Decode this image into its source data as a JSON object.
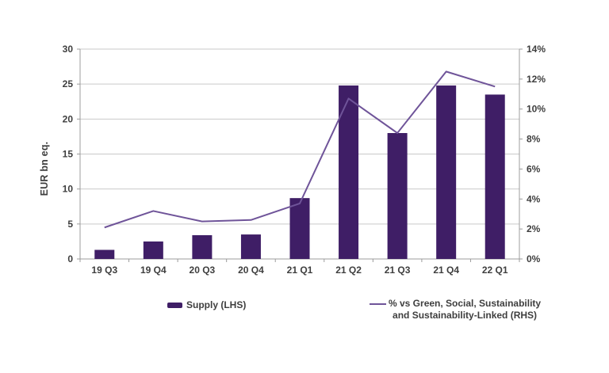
{
  "legend": {
    "bar_label": "Supply (LHS)",
    "line_label_line1": "% vs Green, Social, Sustainability",
    "line_label_line2": "and Sustainability-Linked (RHS)"
  },
  "colors": {
    "bar": "#3f1e66",
    "line": "#6f5499",
    "grid": "#c9c9c9",
    "axis": "#9c9c9c",
    "text": "#3e3e3e",
    "background": "#ffffff"
  },
  "chart_data": {
    "type": "bar+line",
    "categories": [
      "19 Q3",
      "19 Q4",
      "20 Q3",
      "20 Q4",
      "21 Q1",
      "21 Q2",
      "21 Q3",
      "21 Q4",
      "22 Q1"
    ],
    "series": [
      {
        "name": "Supply (LHS)",
        "type": "bar",
        "axis": "left",
        "values": [
          1.3,
          2.5,
          3.4,
          3.5,
          8.7,
          24.8,
          18.0,
          24.8,
          23.5
        ]
      },
      {
        "name": "% vs Green, Social, Sustainability and Sustainability-Linked (RHS)",
        "type": "line",
        "axis": "right",
        "values": [
          2.1,
          3.2,
          2.5,
          2.6,
          3.7,
          10.7,
          8.4,
          12.5,
          11.5
        ]
      }
    ],
    "left_axis": {
      "label": "EUR bn eq.",
      "min": 0,
      "max": 30,
      "tick_values": [
        0,
        5,
        10,
        15,
        20,
        25,
        30
      ],
      "ticks": [
        "0",
        "5",
        "10",
        "15",
        "20",
        "25",
        "30"
      ]
    },
    "right_axis": {
      "min": 0,
      "max": 14,
      "unit": "%",
      "tick_values": [
        0,
        2,
        4,
        6,
        8,
        10,
        12,
        14
      ],
      "ticks": [
        "0%",
        "2%",
        "4%",
        "6%",
        "8%",
        "10%",
        "12%",
        "14%"
      ]
    },
    "grid": "horizontal",
    "legend_position": "bottom"
  }
}
